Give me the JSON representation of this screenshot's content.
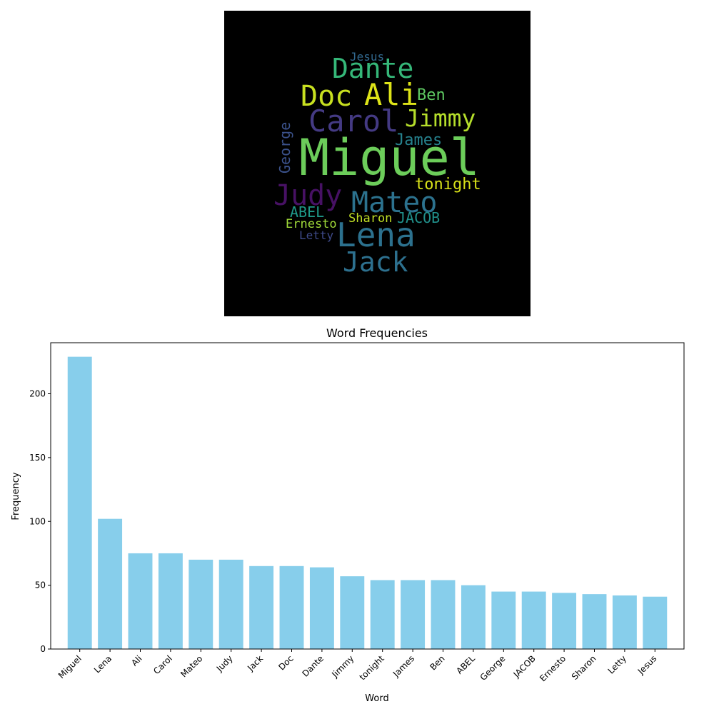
{
  "wordcloud": {
    "words": [
      {
        "text": "Miguel",
        "color": "#6ccd5a"
      },
      {
        "text": "Lena",
        "color": "#2c718e"
      },
      {
        "text": "Ali",
        "color": "#dde318"
      },
      {
        "text": "Carol",
        "color": "#443a83"
      },
      {
        "text": "Mateo",
        "color": "#2c728e"
      },
      {
        "text": "Judy",
        "color": "#471164"
      },
      {
        "text": "Jack",
        "color": "#2d708e"
      },
      {
        "text": "Doc",
        "color": "#c8e020"
      },
      {
        "text": "Dante",
        "color": "#35b779"
      },
      {
        "text": "Jimmy",
        "color": "#b5de2b"
      },
      {
        "text": "tonight",
        "color": "#d8e219"
      },
      {
        "text": "James",
        "color": "#26828e"
      },
      {
        "text": "Ben",
        "color": "#5ec962"
      },
      {
        "text": "ABEL",
        "color": "#1f9a8a"
      },
      {
        "text": "George",
        "color": "#3b528b"
      },
      {
        "text": "JACOB",
        "color": "#21918c"
      },
      {
        "text": "Ernesto",
        "color": "#a0da39"
      },
      {
        "text": "Sharon",
        "color": "#c0df25"
      },
      {
        "text": "Letty",
        "color": "#3e4a89"
      },
      {
        "text": "Jesus",
        "color": "#31688e"
      }
    ]
  },
  "chart_data": {
    "type": "bar",
    "title": "Word Frequencies",
    "xlabel": "Word",
    "ylabel": "Frequency",
    "categories": [
      "Miguel",
      "Lena",
      "Ali",
      "Carol",
      "Mateo",
      "Judy",
      "Jack",
      "Doc",
      "Dante",
      "Jimmy",
      "tonight",
      "James",
      "Ben",
      "ABEL",
      "George",
      "JACOB",
      "Ernesto",
      "Sharon",
      "Letty",
      "Jesus"
    ],
    "values": [
      229,
      102,
      75,
      75,
      70,
      70,
      65,
      65,
      64,
      57,
      54,
      54,
      54,
      50,
      45,
      45,
      44,
      43,
      42,
      41
    ],
    "ylim": [
      0,
      240
    ],
    "yticks": [
      0,
      50,
      100,
      150,
      200
    ],
    "bar_color": "#87ceeb",
    "grid": false,
    "xtick_rotation": "45 degrees"
  }
}
